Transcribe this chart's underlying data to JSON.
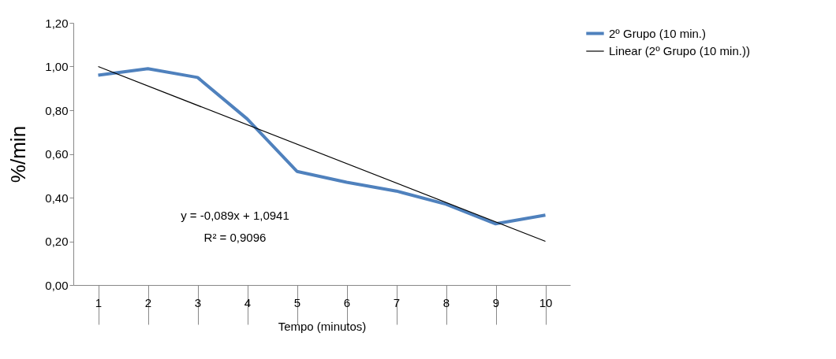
{
  "chart_data": {
    "type": "line",
    "xlabel": "Tempo (minutos)",
    "ylabel": "%/min",
    "categories": [
      "1",
      "2",
      "3",
      "4",
      "5",
      "6",
      "7",
      "8",
      "9",
      "10"
    ],
    "series": [
      {
        "name": "2º Grupo (10 min.)",
        "color": "#4f81bd",
        "values": [
          0.96,
          0.99,
          0.95,
          0.76,
          0.52,
          0.47,
          0.43,
          0.37,
          0.28,
          0.32
        ]
      },
      {
        "name": "Linear (2º Grupo (10 min.))",
        "color": "#000000",
        "x": [
          "1",
          "10"
        ],
        "values": [
          1.0,
          0.2
        ]
      }
    ],
    "ylim": [
      0,
      1.2
    ],
    "yticks": [
      {
        "value": 0,
        "label": "0,00"
      },
      {
        "value": 0.2,
        "label": "0,20"
      },
      {
        "value": 0.4,
        "label": "0,40"
      },
      {
        "value": 0.6,
        "label": "0,60"
      },
      {
        "value": 0.8,
        "label": "0,80"
      },
      {
        "value": 1.0,
        "label": "1,00"
      },
      {
        "value": 1.2,
        "label": "1,20"
      }
    ],
    "annotations": [
      "y = -0,089x + 1,0941",
      "R² = 0,9096"
    ],
    "legend": "right",
    "grid": false,
    "marker": "none"
  }
}
